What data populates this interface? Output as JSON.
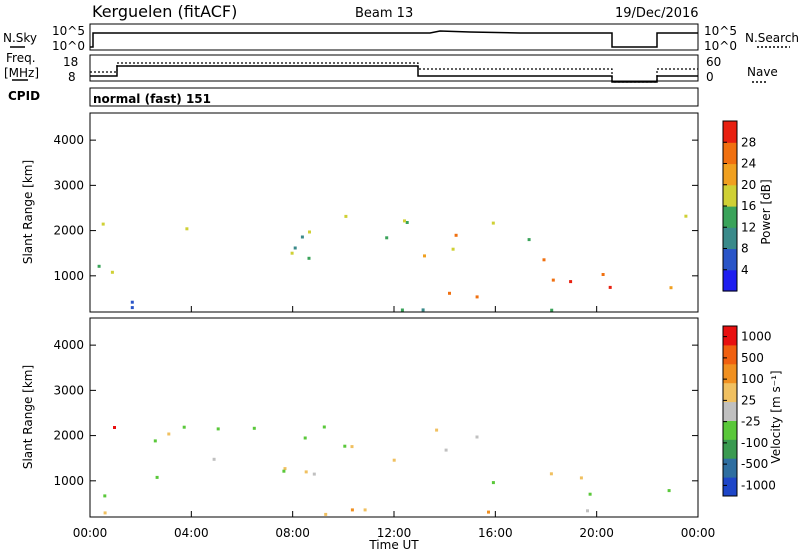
{
  "header": {
    "station": "Kerguelen (fitACF)",
    "beam": "Beam 13",
    "date": "19/Dec/2016"
  },
  "top_panels": {
    "nsky_label": "N.Sky",
    "nsky_ticks": [
      "10^5",
      "10^0"
    ],
    "nsearch_label": "N.Search",
    "nsearch_ticks": [
      "10^5",
      "10^0"
    ],
    "freq_label": "Freq.",
    "freq_unit": "[MHz]",
    "freq_ticks": [
      "18",
      "8"
    ],
    "nave_label": "Nave",
    "nave_ticks": [
      "60",
      "0"
    ],
    "cpid_label": "CPID",
    "cpid_value": "normal (fast) 151"
  },
  "chart_data": [
    {
      "type": "heatmap",
      "name": "power",
      "ylabel": "Slant Range [km]",
      "y_ticks": [
        "1000",
        "2000",
        "3000",
        "4000"
      ],
      "ylim": [
        200,
        4600
      ],
      "xlim": [
        0,
        24
      ],
      "colorbar_label": "Power [dB]",
      "colorbar_ticks": [
        "4",
        "8",
        "12",
        "16",
        "20",
        "24",
        "28"
      ],
      "colorbar_colors": [
        "#1e1ef0",
        "#2a55c8",
        "#3a8a8a",
        "#3aa35a",
        "#cfd035",
        "#f0a020",
        "#f07010",
        "#e82010"
      ],
      "echo_regions": [
        {
          "t0": 0.3,
          "t1": 2.8,
          "r0": 600,
          "r1": 1300,
          "level": 4
        },
        {
          "t0": 0.2,
          "t1": 1.0,
          "r0": 1500,
          "r1": 2400,
          "level": 3
        },
        {
          "t0": 2.3,
          "t1": 5.0,
          "r0": 1800,
          "r1": 2200,
          "level": 4
        },
        {
          "t0": 4.5,
          "t1": 9.5,
          "r0": 1300,
          "r1": 1800,
          "level": 3
        },
        {
          "t0": 6.0,
          "t1": 13.0,
          "r0": 1800,
          "r1": 2400,
          "level": 3
        },
        {
          "t0": 11.5,
          "t1": 13.5,
          "r0": 2100,
          "r1": 2600,
          "level": 3
        },
        {
          "t0": 13.0,
          "t1": 15.5,
          "r0": 1200,
          "r1": 2200,
          "level": 5
        },
        {
          "t0": 15.0,
          "t1": 17.5,
          "r0": 1800,
          "r1": 2400,
          "level": 3
        },
        {
          "t0": 12.8,
          "t1": 17.5,
          "r0": 500,
          "r1": 900,
          "level": 6
        },
        {
          "t0": 17.0,
          "t1": 20.7,
          "r0": 300,
          "r1": 1500,
          "level": 6
        },
        {
          "t0": 22.5,
          "t1": 24.0,
          "r0": 300,
          "r1": 1100,
          "level": 5
        },
        {
          "t0": 23.2,
          "t1": 24.0,
          "r0": 2000,
          "r1": 2900,
          "level": 3
        },
        {
          "t0": 0.0,
          "t1": 20.7,
          "r0": 250,
          "r1": 450,
          "level": 2
        }
      ]
    },
    {
      "type": "heatmap",
      "name": "velocity",
      "ylabel": "Slant Range [km]",
      "y_ticks": [
        "1000",
        "2000",
        "3000",
        "4000"
      ],
      "ylim": [
        200,
        4600
      ],
      "xlim": [
        0,
        24
      ],
      "x_ticks": [
        "00:00",
        "04:00",
        "08:00",
        "12:00",
        "16:00",
        "20:00",
        "00:00"
      ],
      "xlabel": "Time UT",
      "colorbar_label": "Velocity [m s⁻¹]",
      "colorbar_ticks": [
        "1000",
        "500",
        "100",
        "25",
        "-25",
        "-100",
        "-500",
        "-1000"
      ],
      "colorbar_colors": [
        "#1e46c8",
        "#2e6ea0",
        "#3a9a50",
        "#5ac83a",
        "#c0c0c0",
        "#f0c060",
        "#f09020",
        "#f06010",
        "#e81010"
      ],
      "echo_regions": [
        {
          "t0": 0.2,
          "t1": 1.0,
          "r0": 1500,
          "r1": 2300,
          "level": 7
        },
        {
          "t0": 0.5,
          "t1": 2.8,
          "r0": 500,
          "r1": 1300,
          "level": 4
        },
        {
          "t0": 2.5,
          "t1": 13.0,
          "r0": 1300,
          "r1": 2300,
          "level": 4
        },
        {
          "t0": 4.5,
          "t1": 9.0,
          "r0": 800,
          "r1": 1300,
          "level": 4
        },
        {
          "t0": 13.0,
          "t1": 15.5,
          "r0": 1500,
          "r1": 2400,
          "level": 4
        },
        {
          "t0": 14.0,
          "t1": 17.0,
          "r0": 700,
          "r1": 1100,
          "level": 3
        },
        {
          "t0": 17.0,
          "t1": 20.7,
          "r0": 400,
          "r1": 1200,
          "level": 4
        },
        {
          "t0": 22.5,
          "t1": 24.0,
          "r0": 300,
          "r1": 1100,
          "level": 4
        },
        {
          "t0": 0.0,
          "t1": 20.7,
          "r0": 250,
          "r1": 500,
          "level": 5
        }
      ]
    }
  ]
}
